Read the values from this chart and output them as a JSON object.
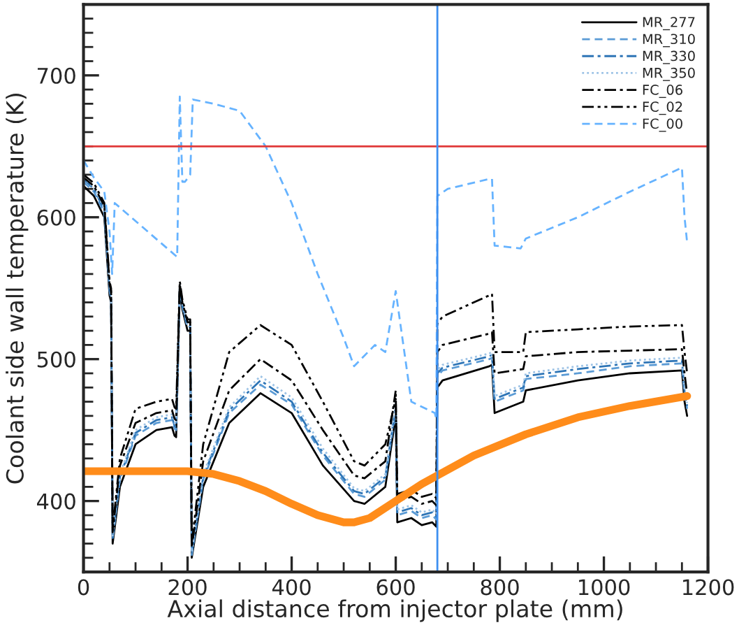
{
  "chart_data": {
    "type": "line",
    "xlabel": "Axial distance from injector plate (mm)",
    "ylabel": "Coolant side wall temperature (K)",
    "xlim": [
      0,
      1200
    ],
    "ylim": [
      350,
      750
    ],
    "xticks": [
      0,
      200,
      400,
      600,
      800,
      1000,
      1200,
      {
        "value": 50,
        "label": null
      },
      {
        "value": 100,
        "label": null
      },
      {
        "value": 150,
        "label": null
      },
      {
        "value": 250,
        "label": null
      },
      {
        "value": 300,
        "label": null
      },
      {
        "value": 350,
        "label": null
      },
      {
        "value": 450,
        "label": null
      },
      {
        "value": 500,
        "label": null
      },
      {
        "value": 550,
        "label": null
      },
      {
        "value": 650,
        "label": null
      },
      {
        "value": 700,
        "label": null
      },
      {
        "value": 750,
        "label": null
      },
      {
        "value": 850,
        "label": null
      },
      {
        "value": 900,
        "label": null
      },
      {
        "value": 950,
        "label": null
      },
      {
        "value": 1050,
        "label": null
      },
      {
        "value": 1100,
        "label": null
      },
      {
        "value": 1150,
        "label": null
      }
    ],
    "yticks": [
      400,
      500,
      600,
      700,
      {
        "value": 360,
        "label": null
      },
      {
        "value": 370,
        "label": null
      },
      {
        "value": 380,
        "label": null
      },
      {
        "value": 390,
        "label": null
      },
      {
        "value": 410,
        "label": null
      },
      {
        "value": 420,
        "label": null
      },
      {
        "value": 430,
        "label": null
      },
      {
        "value": 440,
        "label": null
      },
      {
        "value": 450,
        "label": null
      },
      {
        "value": 460,
        "label": null
      },
      {
        "value": 470,
        "label": null
      },
      {
        "value": 480,
        "label": null
      },
      {
        "value": 490,
        "label": null
      },
      {
        "value": 510,
        "label": null
      },
      {
        "value": 520,
        "label": null
      },
      {
        "value": 530,
        "label": null
      },
      {
        "value": 540,
        "label": null
      },
      {
        "value": 550,
        "label": null
      },
      {
        "value": 560,
        "label": null
      },
      {
        "value": 570,
        "label": null
      },
      {
        "value": 580,
        "label": null
      },
      {
        "value": 590,
        "label": null
      },
      {
        "value": 610,
        "label": null
      },
      {
        "value": 620,
        "label": null
      },
      {
        "value": 630,
        "label": null
      },
      {
        "value": 640,
        "label": null
      },
      {
        "value": 650,
        "label": null
      },
      {
        "value": 660,
        "label": null
      },
      {
        "value": 670,
        "label": null
      },
      {
        "value": 680,
        "label": null
      },
      {
        "value": 690,
        "label": null
      },
      {
        "value": 710,
        "label": null
      },
      {
        "value": 720,
        "label": null
      },
      {
        "value": 730,
        "label": null
      },
      {
        "value": 740,
        "label": null
      }
    ],
    "grid": false,
    "legend": "top right",
    "marker": "none",
    "ref_lines": [
      {
        "axis": "y",
        "value": 650,
        "color": "#e03a3a"
      },
      {
        "axis": "x",
        "value": 680,
        "color": "#3d8ff0"
      }
    ],
    "series": [
      {
        "name": "MR_277",
        "color": "#000000",
        "line_style": "solid",
        "x": [
          0,
          20,
          40,
          50,
          53,
          56,
          70,
          100,
          140,
          170,
          175,
          178,
          185,
          190,
          200,
          205,
          208,
          230,
          280,
          340,
          400,
          460,
          520,
          540,
          580,
          600,
          603,
          630,
          650,
          670,
          678,
          680,
          690,
          780,
          785,
          790,
          845,
          850,
          950,
          1050,
          1150,
          1155,
          1160
        ],
        "values": [
          622,
          615,
          600,
          545,
          540,
          370,
          410,
          440,
          450,
          452,
          446,
          445,
          548,
          535,
          520,
          520,
          360,
          410,
          455,
          476,
          462,
          425,
          400,
          398,
          410,
          460,
          385,
          388,
          383,
          385,
          382,
          480,
          485,
          495,
          496,
          462,
          470,
          478,
          485,
          490,
          492,
          470,
          460
        ]
      },
      {
        "name": "MR_310",
        "color": "#5b9bd5",
        "line_style": "dashed",
        "x": [
          0,
          20,
          40,
          50,
          53,
          56,
          70,
          100,
          140,
          170,
          175,
          178,
          185,
          190,
          200,
          205,
          208,
          230,
          280,
          340,
          400,
          460,
          520,
          540,
          580,
          600,
          603,
          630,
          650,
          670,
          678,
          680,
          690,
          780,
          785,
          790,
          845,
          850,
          950,
          1050,
          1150,
          1155,
          1160
        ],
        "values": [
          625,
          618,
          603,
          548,
          543,
          373,
          415,
          446,
          455,
          457,
          451,
          450,
          550,
          537,
          522,
          522,
          362,
          415,
          462,
          482,
          468,
          432,
          405,
          403,
          415,
          465,
          390,
          393,
          388,
          390,
          387,
          488,
          492,
          500,
          501,
          470,
          478,
          486,
          490,
          495,
          497,
          475,
          465
        ]
      },
      {
        "name": "MR_330",
        "color": "#2e75b6",
        "line_style": "dashdot",
        "x": [
          0,
          20,
          40,
          50,
          53,
          56,
          70,
          100,
          140,
          170,
          175,
          178,
          185,
          190,
          200,
          205,
          208,
          230,
          280,
          340,
          400,
          460,
          520,
          540,
          580,
          600,
          603,
          630,
          650,
          670,
          678,
          680,
          690,
          780,
          785,
          790,
          845,
          850,
          950,
          1050,
          1150,
          1155,
          1160
        ],
        "values": [
          627,
          620,
          605,
          550,
          545,
          374,
          417,
          448,
          457,
          459,
          453,
          452,
          551,
          538,
          523,
          523,
          363,
          417,
          464,
          485,
          470,
          434,
          407,
          405,
          417,
          467,
          392,
          395,
          390,
          392,
          389,
          490,
          494,
          502,
          503,
          472,
          480,
          488,
          493,
          497,
          499,
          477,
          467
        ]
      },
      {
        "name": "MR_350",
        "color": "#9dc3e6",
        "line_style": "dotted",
        "x": [
          0,
          20,
          40,
          50,
          53,
          56,
          70,
          100,
          140,
          170,
          175,
          178,
          185,
          190,
          200,
          205,
          208,
          230,
          280,
          340,
          400,
          460,
          520,
          540,
          580,
          600,
          603,
          630,
          650,
          670,
          678,
          680,
          690,
          780,
          785,
          790,
          845,
          850,
          950,
          1050,
          1150,
          1155,
          1160
        ],
        "values": [
          628,
          621,
          606,
          551,
          546,
          375,
          419,
          450,
          459,
          461,
          455,
          454,
          552,
          539,
          524,
          524,
          364,
          419,
          466,
          488,
          473,
          437,
          409,
          407,
          419,
          469,
          394,
          397,
          392,
          394,
          391,
          492,
          496,
          504,
          505,
          474,
          482,
          490,
          495,
          499,
          501,
          479,
          469
        ]
      },
      {
        "name": "FC_06",
        "color": "#000000",
        "line_style": "dashdot",
        "x": [
          0,
          20,
          40,
          50,
          53,
          56,
          70,
          100,
          140,
          170,
          175,
          178,
          185,
          190,
          200,
          205,
          208,
          230,
          280,
          340,
          400,
          460,
          520,
          540,
          580,
          600,
          603,
          630,
          650,
          670,
          678,
          680,
          690,
          780,
          785,
          790,
          845,
          850,
          950,
          1050,
          1150,
          1155,
          1160
        ],
        "values": [
          628,
          622,
          608,
          553,
          548,
          378,
          425,
          455,
          462,
          464,
          458,
          457,
          553,
          540,
          526,
          526,
          367,
          428,
          478,
          500,
          485,
          450,
          418,
          416,
          428,
          478,
          400,
          403,
          398,
          400,
          397,
          505,
          510,
          518,
          519,
          490,
          493,
          502,
          505,
          506,
          507,
          490,
          475
        ]
      },
      {
        "name": "FC_02",
        "color": "#000000",
        "line_style": "dashdotdot",
        "x": [
          0,
          20,
          40,
          50,
          53,
          56,
          70,
          100,
          140,
          170,
          175,
          178,
          185,
          190,
          200,
          205,
          208,
          230,
          280,
          340,
          400,
          460,
          520,
          540,
          580,
          600,
          603,
          630,
          650,
          670,
          678,
          680,
          690,
          780,
          785,
          790,
          845,
          850,
          950,
          1050,
          1150,
          1155,
          1160
        ],
        "values": [
          630,
          624,
          610,
          555,
          550,
          380,
          430,
          465,
          470,
          472,
          466,
          465,
          555,
          542,
          528,
          528,
          370,
          440,
          505,
          524,
          510,
          470,
          428,
          425,
          440,
          472,
          405,
          408,
          403,
          405,
          402,
          525,
          530,
          545,
          546,
          505,
          505,
          519,
          521,
          523,
          524,
          505,
          490
        ]
      },
      {
        "name": "FC_00",
        "color": "#66b3ff",
        "line_style": "dashed",
        "x": [
          0,
          20,
          40,
          50,
          55,
          60,
          180,
          185,
          190,
          195,
          205,
          210,
          250,
          300,
          350,
          400,
          450,
          500,
          520,
          560,
          580,
          600,
          630,
          675,
          678,
          680,
          700,
          780,
          785,
          790,
          840,
          850,
          950,
          1050,
          1150,
          1155,
          1160
        ],
        "values": [
          640,
          628,
          618,
          590,
          560,
          610,
          572,
          685,
          625,
          625,
          630,
          683,
          680,
          675,
          650,
          610,
          560,
          515,
          495,
          510,
          505,
          548,
          470,
          462,
          458,
          615,
          620,
          627,
          627,
          580,
          578,
          585,
          600,
          618,
          635,
          600,
          582
        ]
      },
      {
        "color": "#ff8c1a",
        "line_style": "solid",
        "x": [
          0,
          100,
          200,
          250,
          300,
          350,
          400,
          450,
          500,
          520,
          550,
          600,
          650,
          680,
          750,
          850,
          950,
          1050,
          1160
        ],
        "values": [
          421,
          421,
          421,
          419,
          414,
          407,
          398,
          390,
          385,
          385,
          388,
          400,
          412,
          418,
          432,
          447,
          459,
          467,
          474
        ]
      }
    ]
  }
}
